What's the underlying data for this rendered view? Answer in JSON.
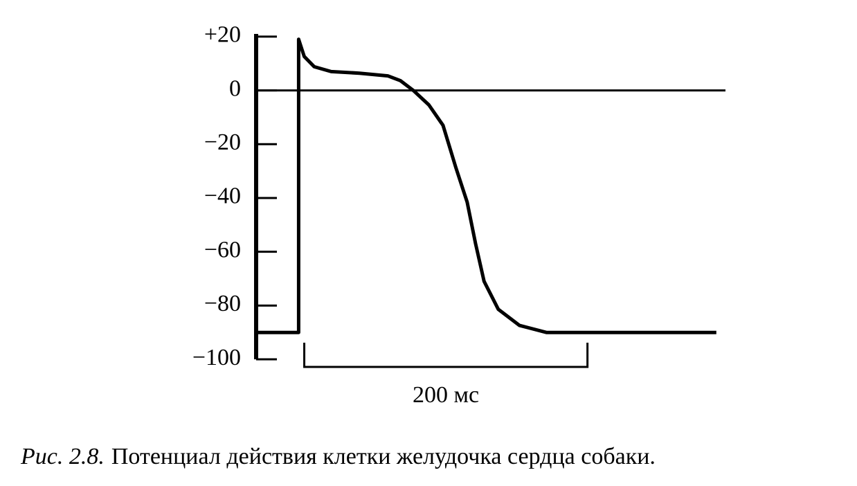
{
  "chart_data": {
    "type": "line",
    "x": [
      -30,
      0,
      0,
      4,
      11,
      23,
      43,
      63,
      72,
      81,
      92,
      102,
      111,
      119,
      125,
      131,
      141,
      156,
      175,
      295
    ],
    "series": [
      {
        "color": "#000000",
        "values": [
          -90,
          -90,
          19,
          12.6,
          8.8,
          7,
          6.4,
          5.4,
          3.6,
          0,
          -5.4,
          -13,
          -28.6,
          -41.5,
          -57,
          -71,
          -81.4,
          -87.4,
          -90,
          -90
        ]
      }
    ],
    "xlim": [
      -30,
      300
    ],
    "ylim": [
      -100,
      21
    ],
    "yticks": [
      {
        "value": 20,
        "label": "+20"
      },
      0,
      {
        "value": -20,
        "label": "−20"
      },
      {
        "value": -40,
        "label": "−40"
      },
      {
        "value": -60,
        "label": "−60"
      },
      {
        "value": -80,
        "label": "−80"
      },
      {
        "value": -100,
        "label": "−100"
      }
    ],
    "reference_line": 0,
    "scale_bar": {
      "start": 4,
      "length": 200,
      "label": "200 мс"
    },
    "caption_prefix": "Рис. 2.8.",
    "caption": "Потенциал действия клетки желудочка сердца собаки."
  }
}
